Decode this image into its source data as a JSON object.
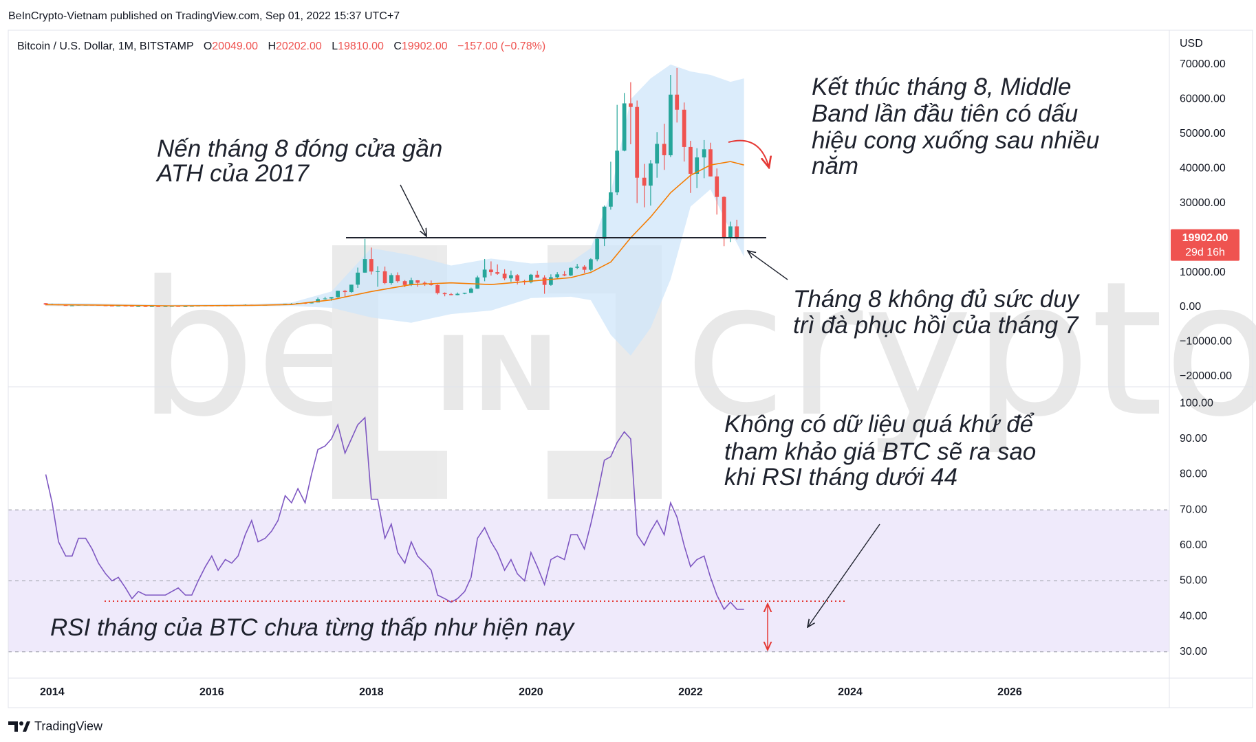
{
  "header": {
    "publisher": "BeInCrypto-Vietnam published on TradingView.com, Sep 01, 2022 15:37 UTC+7",
    "symbol": "Bitcoin / U.S. Dollar, 1M, BITSTAMP",
    "ohlc_legend": [
      {
        "label": "O",
        "value": "20049.00"
      },
      {
        "label": "H",
        "value": "20202.00"
      },
      {
        "label": "L",
        "value": "19810.00"
      },
      {
        "label": "C",
        "value": "19902.00"
      }
    ],
    "change": "−157.00 (−0.78%)"
  },
  "currency": "USD",
  "price_label": {
    "price": "19902.00",
    "countdown": "29d 16h"
  },
  "watermark": {
    "left": "be",
    "middle": "IN",
    "right": "crypto"
  },
  "annotations": [
    {
      "lines": [
        "Nến tháng 8 đóng cửa gần",
        "ATH của 2017"
      ]
    },
    {
      "lines": [
        "Kết thúc tháng 8, Middle",
        "Band lần đầu tiên có dấu",
        "hiệu cong xuống sau nhiều",
        "năm"
      ]
    },
    {
      "lines": [
        "Tháng 8 không đủ sức duy",
        "trì đà phục hồi của tháng 7"
      ]
    },
    {
      "lines": [
        "Không có dữ liệu quá khứ để",
        "tham khảo giá BTC sẽ ra sao",
        "khi RSI tháng dưới 44"
      ]
    },
    {
      "lines": [
        "RSI tháng của BTC chưa từng thấp như hiện nay"
      ]
    }
  ],
  "footer": "TradingView",
  "chart_data": {
    "type": "candlestick",
    "up_color": "#26a69a",
    "down_color": "#ef5350",
    "xlim": [
      2013.45,
      2028.0
    ],
    "xticks": [
      2014,
      2016,
      2018,
      2020,
      2022,
      2024,
      2026
    ],
    "ylim": [
      -22800,
      79300
    ],
    "yticks": [
      {
        "value": -20000,
        "label": "−20000.00"
      },
      {
        "value": -10000,
        "label": "−10000.00"
      },
      {
        "value": 0,
        "label": "0.00"
      },
      {
        "value": 10000,
        "label": "10000.00"
      },
      {
        "value": 20000,
        "label": "20000.00"
      },
      {
        "value": 30000,
        "label": "30000.00"
      },
      {
        "value": 40000,
        "label": "40000.00"
      },
      {
        "value": 50000,
        "label": "50000.00"
      },
      {
        "value": 60000,
        "label": "60000.00"
      },
      {
        "value": 70000,
        "label": "70000.00"
      }
    ],
    "x": [
      2013.92,
      2014,
      2014.08,
      2014.17,
      2014.25,
      2014.33,
      2014.42,
      2014.5,
      2014.58,
      2014.67,
      2014.75,
      2014.83,
      2014.92,
      2015,
      2015.08,
      2015.17,
      2015.25,
      2015.33,
      2015.42,
      2015.5,
      2015.58,
      2015.67,
      2015.75,
      2015.83,
      2015.92,
      2016,
      2016.08,
      2016.17,
      2016.25,
      2016.33,
      2016.42,
      2016.5,
      2016.58,
      2016.67,
      2016.75,
      2016.83,
      2016.92,
      2017,
      2017.08,
      2017.17,
      2017.25,
      2017.33,
      2017.42,
      2017.5,
      2017.58,
      2017.67,
      2017.75,
      2017.83,
      2017.92,
      2018,
      2018.08,
      2018.17,
      2018.25,
      2018.33,
      2018.42,
      2018.5,
      2018.58,
      2018.67,
      2018.75,
      2018.83,
      2018.92,
      2019,
      2019.08,
      2019.17,
      2019.25,
      2019.33,
      2019.42,
      2019.5,
      2019.58,
      2019.67,
      2019.75,
      2019.83,
      2019.92,
      2020,
      2020.08,
      2020.17,
      2020.25,
      2020.33,
      2020.42,
      2020.5,
      2020.58,
      2020.67,
      2020.75,
      2020.83,
      2020.92,
      2021,
      2021.08,
      2021.17,
      2021.25,
      2021.33,
      2021.42,
      2021.5,
      2021.58,
      2021.67,
      2021.75,
      2021.83,
      2021.92,
      2022,
      2022.08,
      2022.17,
      2022.25,
      2022.33,
      2022.42,
      2022.5,
      2022.58,
      2022.67
    ],
    "ohlc": [
      [
        1130,
        1160,
        520,
        730
      ],
      [
        730,
        1000,
        720,
        800
      ],
      [
        800,
        850,
        500,
        550
      ],
      [
        550,
        700,
        440,
        440
      ],
      [
        440,
        540,
        340,
        450
      ],
      [
        450,
        640,
        440,
        630
      ],
      [
        630,
        680,
        550,
        640
      ],
      [
        640,
        650,
        570,
        590
      ],
      [
        590,
        600,
        440,
        480
      ],
      [
        480,
        500,
        370,
        390
      ],
      [
        390,
        420,
        280,
        340
      ],
      [
        340,
        460,
        320,
        380
      ],
      [
        380,
        390,
        300,
        320
      ],
      [
        320,
        320,
        150,
        220
      ],
      [
        220,
        265,
        210,
        250
      ],
      [
        250,
        300,
        240,
        240
      ],
      [
        240,
        260,
        210,
        240
      ],
      [
        240,
        250,
        225,
        230
      ],
      [
        230,
        265,
        220,
        260
      ],
      [
        260,
        320,
        255,
        280
      ],
      [
        280,
        285,
        200,
        230
      ],
      [
        230,
        245,
        225,
        240
      ],
      [
        240,
        330,
        235,
        310
      ],
      [
        310,
        500,
        305,
        380
      ],
      [
        380,
        470,
        350,
        430
      ],
      [
        430,
        465,
        355,
        370
      ],
      [
        370,
        450,
        365,
        440
      ],
      [
        440,
        440,
        400,
        420
      ],
      [
        420,
        470,
        410,
        450
      ],
      [
        450,
        550,
        440,
        530
      ],
      [
        530,
        780,
        530,
        670
      ],
      [
        670,
        700,
        600,
        620
      ],
      [
        620,
        620,
        470,
        570
      ],
      [
        570,
        620,
        570,
        610
      ],
      [
        610,
        720,
        600,
        700
      ],
      [
        700,
        760,
        690,
        740
      ],
      [
        740,
        980,
        730,
        960
      ],
      [
        960,
        1160,
        750,
        970
      ],
      [
        970,
        1200,
        920,
        1190
      ],
      [
        1190,
        1350,
        890,
        1080
      ],
      [
        1080,
        1420,
        1060,
        1350
      ],
      [
        1350,
        2760,
        1350,
        2300
      ],
      [
        2300,
        3000,
        2150,
        2480
      ],
      [
        2480,
        2920,
        1830,
        2880
      ],
      [
        2880,
        4760,
        2700,
        4700
      ],
      [
        4700,
        4980,
        2970,
        4340
      ],
      [
        4340,
        6470,
        4110,
        6470
      ],
      [
        6470,
        11400,
        5550,
        9950
      ],
      [
        9950,
        19670,
        9900,
        13860
      ],
      [
        13860,
        17180,
        9400,
        10270
      ],
      [
        10270,
        11790,
        5870,
        10330
      ],
      [
        10330,
        11700,
        6600,
        6930
      ],
      [
        6930,
        9770,
        6430,
        9240
      ],
      [
        9240,
        10020,
        7030,
        7490
      ],
      [
        7490,
        7780,
        5760,
        6390
      ],
      [
        6390,
        8480,
        6070,
        7730
      ],
      [
        7730,
        7770,
        5880,
        7030
      ],
      [
        7030,
        7410,
        6120,
        6630
      ],
      [
        6630,
        7680,
        6190,
        6370
      ],
      [
        6370,
        6550,
        3650,
        4040
      ],
      [
        4040,
        4240,
        3120,
        3740
      ],
      [
        3740,
        4080,
        3400,
        3460
      ],
      [
        3460,
        4210,
        3400,
        3850
      ],
      [
        3850,
        4130,
        3730,
        4110
      ],
      [
        4110,
        5640,
        4080,
        5320
      ],
      [
        5320,
        9070,
        5280,
        8570
      ],
      [
        8570,
        13880,
        7460,
        10820
      ],
      [
        10820,
        13200,
        9080,
        10090
      ],
      [
        10090,
        12330,
        9330,
        9630
      ],
      [
        9630,
        10930,
        7730,
        8290
      ],
      [
        8290,
        10540,
        7300,
        9200
      ],
      [
        9200,
        9520,
        6520,
        7560
      ],
      [
        7560,
        7890,
        6430,
        7190
      ],
      [
        7190,
        9570,
        6870,
        9350
      ],
      [
        9350,
        10500,
        8450,
        8520
      ],
      [
        8520,
        9190,
        3850,
        6410
      ],
      [
        6410,
        9460,
        6150,
        8620
      ],
      [
        8620,
        10080,
        8110,
        9450
      ],
      [
        9450,
        10380,
        8910,
        9140
      ],
      [
        9140,
        11440,
        8970,
        11350
      ],
      [
        11350,
        12470,
        10980,
        11660
      ],
      [
        11660,
        12080,
        9880,
        10780
      ],
      [
        10780,
        14100,
        10370,
        13800
      ],
      [
        13800,
        19850,
        13220,
        19700
      ],
      [
        19700,
        29300,
        17620,
        28990
      ],
      [
        28990,
        41950,
        28130,
        33110
      ],
      [
        33110,
        58350,
        32300,
        45140
      ],
      [
        45140,
        61790,
        44950,
        58790
      ],
      [
        58790,
        64900,
        47000,
        57750
      ],
      [
        57750,
        59600,
        30000,
        37330
      ],
      [
        37330,
        41330,
        28800,
        35040
      ],
      [
        35040,
        42390,
        29280,
        41460
      ],
      [
        41460,
        50500,
        37330,
        47100
      ],
      [
        47100,
        52920,
        39600,
        43820
      ],
      [
        43820,
        67000,
        43300,
        61310
      ],
      [
        61310,
        69000,
        53260,
        56950
      ],
      [
        56950,
        59040,
        42000,
        46210
      ],
      [
        46210,
        47990,
        32950,
        38470
      ],
      [
        38470,
        45850,
        34320,
        43190
      ],
      [
        43190,
        48190,
        37200,
        45540
      ],
      [
        45540,
        47440,
        37700,
        37710
      ],
      [
        37710,
        40000,
        26700,
        31790
      ],
      [
        31790,
        31990,
        17590,
        19940
      ],
      [
        19940,
        24670,
        18780,
        23300
      ],
      [
        23300,
        25210,
        19530,
        20049
      ],
      [
        20049,
        20202,
        19810,
        19902
      ]
    ],
    "band": {
      "fill": "#cfe6fa",
      "middle_color": "#f57c00",
      "x": [
        2013.92,
        2014.5,
        2015.5,
        2016.5,
        2017,
        2017.5,
        2018,
        2018.5,
        2019,
        2019.5,
        2020,
        2020.5,
        2020.75,
        2021,
        2021.25,
        2021.5,
        2021.75,
        2022,
        2022.25,
        2022.5,
        2022.67
      ],
      "upper": [
        1200,
        1100,
        700,
        900,
        1300,
        4500,
        17000,
        15000,
        12000,
        14000,
        12600,
        13000,
        17000,
        33000,
        60000,
        66000,
        70000,
        68000,
        67000,
        65000,
        66000
      ],
      "middle": [
        700,
        600,
        350,
        500,
        750,
        2100,
        4500,
        6500,
        7000,
        6500,
        7500,
        8500,
        10000,
        13000,
        20000,
        26000,
        33000,
        38000,
        41000,
        42000,
        41000
      ],
      "lower": [
        300,
        200,
        150,
        200,
        300,
        -200,
        -3000,
        -4500,
        -2000,
        -1000,
        2600,
        3000,
        2000,
        -8000,
        -14000,
        -6000,
        8000,
        29000,
        34000,
        22000,
        14500
      ]
    },
    "rsi": {
      "color": "#7e57c2",
      "fill": "#efeafb",
      "ylim": [
        22.6,
        104.3
      ],
      "yticks": [
        {
          "value": 30,
          "label": "30.00"
        },
        {
          "value": 40,
          "label": "40.00"
        },
        {
          "value": 50,
          "label": "50.00"
        },
        {
          "value": 60,
          "label": "60.00"
        },
        {
          "value": 70,
          "label": "70.00"
        },
        {
          "value": 80,
          "label": "80.00"
        },
        {
          "value": 90,
          "label": "90.00"
        },
        {
          "value": 100,
          "label": "100.00"
        }
      ],
      "levels": [
        70,
        50,
        30
      ],
      "values": [
        80,
        72,
        61,
        57,
        57,
        62,
        62,
        59,
        55,
        52,
        50,
        51,
        48,
        45,
        47,
        46,
        46,
        46,
        46,
        47,
        48,
        46,
        46,
        50,
        54,
        57,
        53,
        56,
        55,
        57,
        63,
        67,
        61,
        62,
        64,
        67,
        74,
        72,
        76,
        72,
        80,
        87,
        88,
        90,
        94,
        86,
        90,
        94,
        96,
        73,
        73,
        62,
        66,
        58,
        55,
        61,
        57,
        55,
        53,
        46,
        45,
        44,
        45,
        47,
        51,
        62,
        65,
        61,
        58,
        53,
        56,
        52,
        50,
        58,
        54,
        49,
        56,
        57,
        56,
        63,
        63,
        59,
        66,
        74,
        84,
        85,
        89,
        92,
        90,
        63,
        60,
        64,
        67,
        63,
        72,
        68,
        60,
        54,
        56,
        57,
        51,
        46,
        42,
        44,
        42,
        42
      ]
    }
  }
}
